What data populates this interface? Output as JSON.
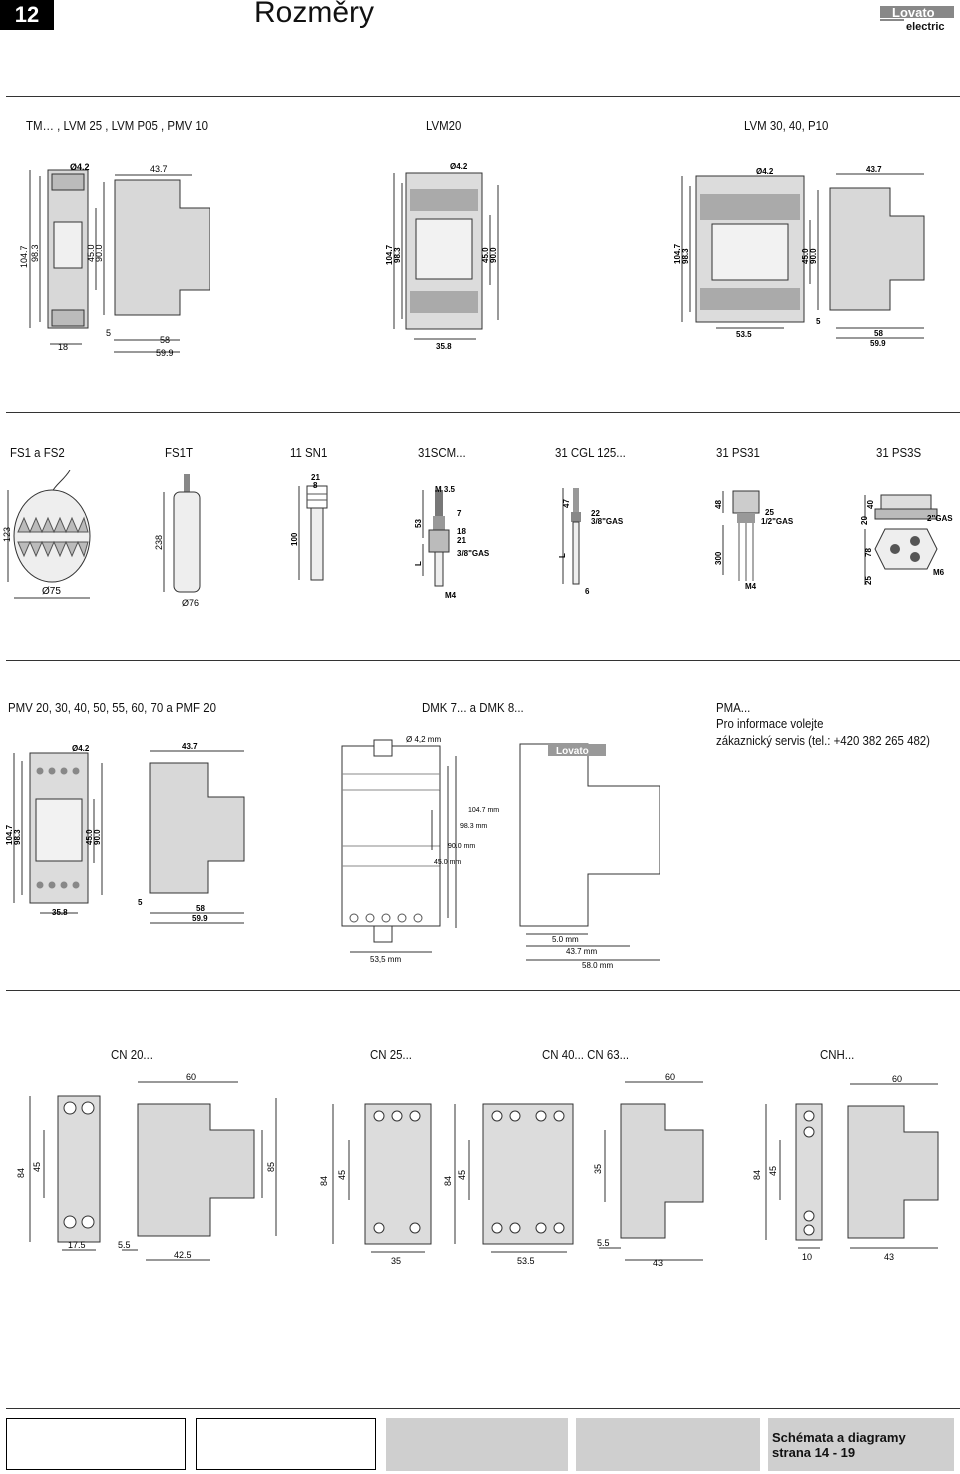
{
  "header": {
    "page_number": "12",
    "title": "Rozměry",
    "logo_text": "Lovato",
    "logo_subtext": "electric"
  },
  "section1": {
    "labels": [
      "TM… , LVM 25 , LVM P05 , PMV 10",
      "LVM20",
      "LVM 30, 40, P10"
    ],
    "dims_left": [
      "Ø4.2",
      "43.7",
      "104.7",
      "98.3",
      "45.0",
      "90.0",
      "5",
      "18",
      "58",
      "59.9"
    ],
    "dims_mid": [
      "Ø4.2",
      "104.7",
      "98.3",
      "45.0",
      "90.0",
      "35.8"
    ],
    "dims_right": [
      "Ø4.2",
      "43.7",
      "104.7",
      "98.3",
      "45.0",
      "90.0",
      "5",
      "53.5",
      "58",
      "59.9"
    ]
  },
  "section2": {
    "labels": [
      "FS1 a FS2",
      "FS1T",
      "11 SN1",
      "31SCM...",
      "31 CGL 125...",
      "31 PS31",
      "31 PS3S"
    ],
    "dims_fs1": [
      "123",
      "Ø75"
    ],
    "dims_fs1t": [
      "238",
      "Ø76"
    ],
    "dims_sn1": [
      "21",
      "8",
      "100"
    ],
    "dims_scm": [
      "M 3.5",
      "53",
      "7",
      "18",
      "21",
      "3/8\"GAS",
      "L",
      "M4"
    ],
    "dims_cgl": [
      "47",
      "22",
      "3/8\"GAS",
      "L",
      "6"
    ],
    "dims_ps31": [
      "48",
      "25",
      "1/2\"GAS",
      "300",
      "M4"
    ],
    "dims_ps3s": [
      "40",
      "20",
      "2\"GAS",
      "78",
      "25",
      "M6"
    ]
  },
  "section3": {
    "pmv_label": "PMV 20, 30, 40, 50, 55, 60, 70 a PMF 20",
    "dmk_label": "DMK 7... a DMK 8...",
    "pma_label": "PMA...",
    "pma_note_1": "Pro informace volejte",
    "pma_note_2": "zákaznický servis (tel.: +420 382 265 482)",
    "dims_pmv": [
      "Ø4.2",
      "43.7",
      "104.7",
      "98.3",
      "45.0",
      "90.0",
      "5",
      "35.8",
      "58",
      "59.9"
    ],
    "dims_dmk": [
      "Ø 4,2 mm",
      "104.7 mm",
      "98.3 mm",
      "90.0 mm",
      "45.0 mm",
      "53,5 mm",
      "5.0 mm",
      "43.7 mm",
      "58.0 mm"
    ],
    "dmk_logo": "Lovato"
  },
  "section4": {
    "labels": [
      "CN 20...",
      "CN 25...",
      "CN 40... CN 63...",
      "CNH..."
    ],
    "dims_cn20": [
      "60",
      "84",
      "45",
      "85",
      "17.5",
      "5.5",
      "42.5"
    ],
    "dims_cn25": [
      "84",
      "45",
      "84",
      "45",
      "35",
      "53.5"
    ],
    "dims_cn40": [
      "60",
      "35",
      "5.5",
      "43"
    ],
    "dims_cnh": [
      "60",
      "84",
      "45",
      "10",
      "43"
    ]
  },
  "footer": {
    "line1": "Schémata a diagramy",
    "line2": "strana 14 - 19"
  }
}
